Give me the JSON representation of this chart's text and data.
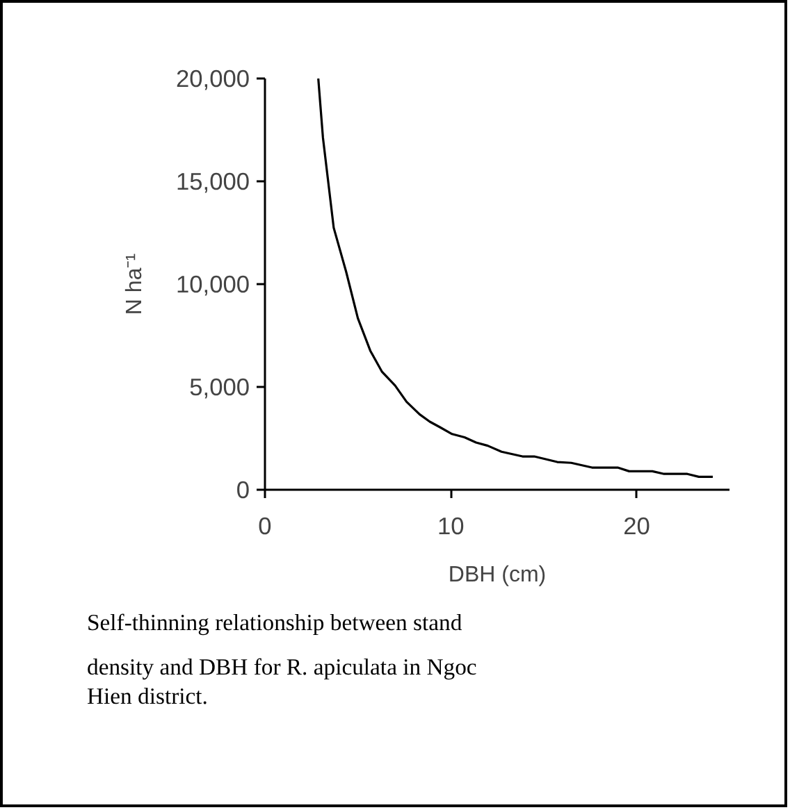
{
  "chart_data": {
    "type": "line",
    "xlabel": "DBH (cm)",
    "ylabel": "N ha⁻¹",
    "annotations": [
      "Self-thinning relationship between stand density and DBH for R. apiculata in Ngoc Hien district."
    ],
    "xlim": [
      0,
      25
    ],
    "xticks": [
      0,
      10,
      20
    ],
    "ylim": [
      0,
      20000
    ],
    "yticks": [
      {
        "value": 0,
        "label": "0"
      },
      {
        "value": 5000,
        "label": "5,000"
      },
      {
        "value": 10000,
        "label": "10,000"
      },
      {
        "value": 15000,
        "label": "15,000"
      },
      {
        "value": 20000,
        "label": "20,000"
      }
    ],
    "grid": false,
    "marker": "none",
    "line_style": "solid",
    "series": [
      {
        "color": "#000000",
        "x": [
          2.87,
          3.12,
          3.7,
          4.37,
          5.0,
          5.67,
          6.29,
          7.0,
          7.62,
          8.32,
          8.87,
          9.42,
          10.07,
          10.74,
          11.36,
          11.99,
          12.73,
          13.86,
          14.49,
          15.73,
          16.48,
          17.6,
          18.98,
          19.6,
          20.85,
          21.48,
          22.73,
          23.35,
          24.1
        ],
        "values": [
          20000,
          17130,
          12740,
          10600,
          8340,
          6760,
          5750,
          5070,
          4280,
          3670,
          3310,
          3040,
          2710,
          2550,
          2300,
          2140,
          1850,
          1620,
          1620,
          1350,
          1310,
          1080,
          1080,
          900,
          900,
          770,
          770,
          630,
          630
        ]
      }
    ]
  }
}
